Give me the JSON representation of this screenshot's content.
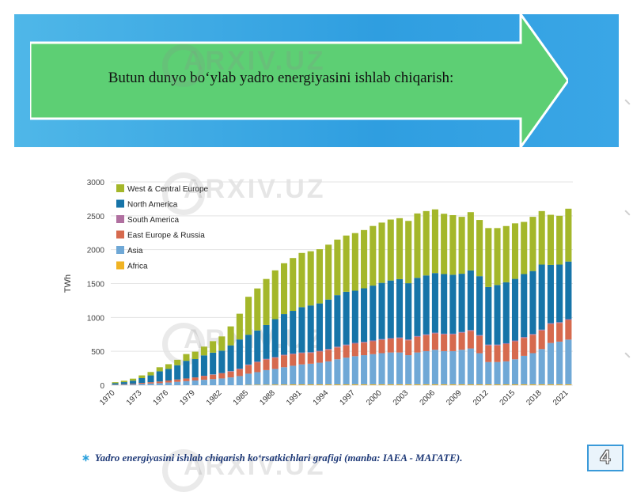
{
  "banner": {
    "title": "Butun dunyo bo‘ylab yadro energiyasini ishlab chiqarish:"
  },
  "watermark": "ARXIV.UZ",
  "caption": {
    "star": "∗",
    "text": "Yadro energiyasini ishlab chiqarish ko‘rsatkichlari grafigi (manba: IAEA - МАГАТЕ)."
  },
  "page_number": "4",
  "colors": {
    "band": "#2f9ee0",
    "arrow": "#5dcf74",
    "arrow_border": "#ffffff"
  },
  "chart_data": {
    "type": "bar",
    "stacked": true,
    "ylabel": "TWh",
    "xlabel": "",
    "title": "",
    "ylim": [
      0,
      3000
    ],
    "yticks": [
      0,
      500,
      1000,
      1500,
      2000,
      2500,
      3000
    ],
    "grid": "horizontal",
    "legend_position": "top-left",
    "x": [
      1970,
      1971,
      1972,
      1973,
      1974,
      1975,
      1976,
      1977,
      1978,
      1979,
      1980,
      1981,
      1982,
      1983,
      1984,
      1985,
      1986,
      1987,
      1988,
      1989,
      1990,
      1991,
      1992,
      1993,
      1994,
      1995,
      1996,
      1997,
      1998,
      1999,
      2000,
      2001,
      2002,
      2003,
      2004,
      2005,
      2006,
      2007,
      2008,
      2009,
      2010,
      2011,
      2012,
      2013,
      2014,
      2015,
      2016,
      2017,
      2018,
      2019,
      2020,
      2021
    ],
    "x_tick_labels": [
      "1970",
      "1973",
      "1976",
      "1979",
      "1982",
      "1985",
      "1988",
      "1991",
      "1994",
      "1997",
      "2000",
      "2003",
      "2006",
      "2009",
      "2012",
      "2015",
      "2018",
      "2021"
    ],
    "series": [
      {
        "name": "Africa",
        "color": "#f0b323",
        "values": [
          0,
          0,
          0,
          0,
          0,
          0,
          0,
          0,
          0,
          0,
          0,
          0,
          0,
          0,
          0,
          5,
          8,
          8,
          10,
          10,
          12,
          12,
          12,
          12,
          12,
          12,
          12,
          13,
          13,
          13,
          13,
          13,
          13,
          13,
          13,
          13,
          13,
          13,
          13,
          13,
          12,
          12,
          12,
          12,
          12,
          12,
          13,
          13,
          13,
          13,
          13,
          13
        ]
      },
      {
        "name": "Asia",
        "color": "#6fa8d6",
        "values": [
          5,
          8,
          12,
          20,
          25,
          30,
          40,
          50,
          60,
          70,
          80,
          90,
          100,
          115,
          135,
          165,
          185,
          215,
          230,
          255,
          275,
          295,
          305,
          320,
          340,
          370,
          395,
          415,
          430,
          445,
          460,
          470,
          470,
          430,
          470,
          490,
          510,
          490,
          490,
          510,
          530,
          460,
          330,
          330,
          340,
          370,
          420,
          460,
          520,
          610,
          630,
          660
        ]
      },
      {
        "name": "East Europe & Russia",
        "color": "#d66a4e",
        "values": [
          5,
          8,
          10,
          15,
          20,
          25,
          30,
          35,
          40,
          45,
          55,
          65,
          75,
          85,
          100,
          125,
          145,
          155,
          165,
          175,
          170,
          165,
          160,
          165,
          170,
          175,
          180,
          185,
          185,
          190,
          195,
          200,
          210,
          220,
          230,
          235,
          240,
          245,
          245,
          250,
          260,
          255,
          245,
          245,
          255,
          265,
          265,
          270,
          275,
          280,
          275,
          290
        ]
      },
      {
        "name": "South America",
        "color": "#b070a0",
        "values": [
          0,
          0,
          0,
          0,
          0,
          0,
          0,
          0,
          0,
          0,
          5,
          5,
          5,
          8,
          10,
          10,
          10,
          10,
          10,
          10,
          10,
          10,
          10,
          10,
          12,
          12,
          12,
          12,
          12,
          12,
          12,
          12,
          12,
          12,
          12,
          12,
          12,
          12,
          12,
          12,
          12,
          12,
          12,
          12,
          12,
          12,
          12,
          12,
          12,
          12,
          12,
          12
        ]
      },
      {
        "name": "North America",
        "color": "#1674a8",
        "values": [
          20,
          30,
          45,
          70,
          100,
          150,
          170,
          210,
          260,
          270,
          300,
          320,
          330,
          380,
          430,
          440,
          460,
          500,
          560,
          600,
          630,
          670,
          690,
          700,
          730,
          760,
          780,
          770,
          790,
          810,
          830,
          850,
          860,
          830,
          860,
          870,
          880,
          880,
          870,
          860,
          880,
          870,
          850,
          880,
          900,
          910,
          930,
          930,
          960,
          860,
          850,
          850
        ]
      },
      {
        "name": "West & Central Europe",
        "color": "#a4b72a",
        "values": [
          15,
          20,
          30,
          40,
          50,
          60,
          70,
          80,
          100,
          110,
          130,
          170,
          210,
          280,
          380,
          560,
          620,
          680,
          720,
          750,
          780,
          800,
          800,
          800,
          810,
          820,
          830,
          850,
          860,
          880,
          890,
          900,
          900,
          920,
          950,
          950,
          940,
          890,
          880,
          840,
          860,
          830,
          870,
          840,
          830,
          820,
          770,
          800,
          790,
          740,
          720,
          780
        ]
      }
    ]
  }
}
